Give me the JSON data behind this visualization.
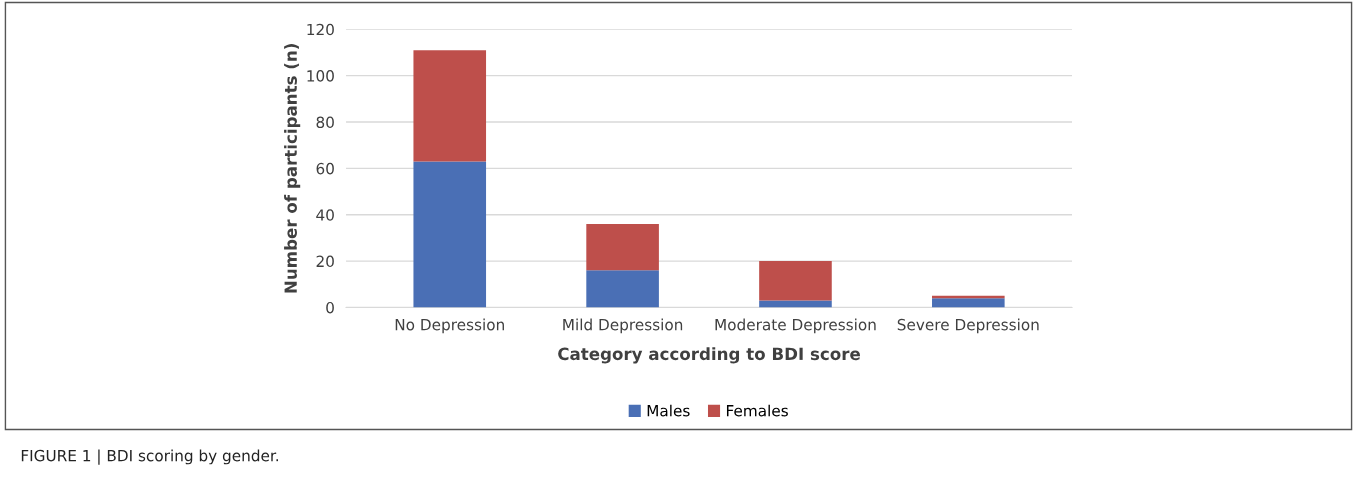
{
  "chart_data": {
    "type": "bar",
    "stacked": true,
    "categories": [
      "No Depression",
      "Mild Depression",
      "Moderate Depression",
      "Severe Depression"
    ],
    "series": [
      {
        "name": "Males",
        "color": "#4a6fb5",
        "values": [
          63,
          16,
          3,
          4
        ]
      },
      {
        "name": "Females",
        "color": "#be4f4b",
        "values": [
          48,
          20,
          17,
          1
        ]
      }
    ],
    "xlabel": "Category according to BDI score",
    "ylabel": "Number of participants (n)",
    "ylim": [
      0,
      120
    ],
    "yticks": [
      0,
      20,
      40,
      60,
      80,
      100,
      120
    ],
    "grid": "y",
    "legend": "bottom",
    "annotations": [
      "FIGURE 1 | BDI scoring by gender."
    ]
  }
}
